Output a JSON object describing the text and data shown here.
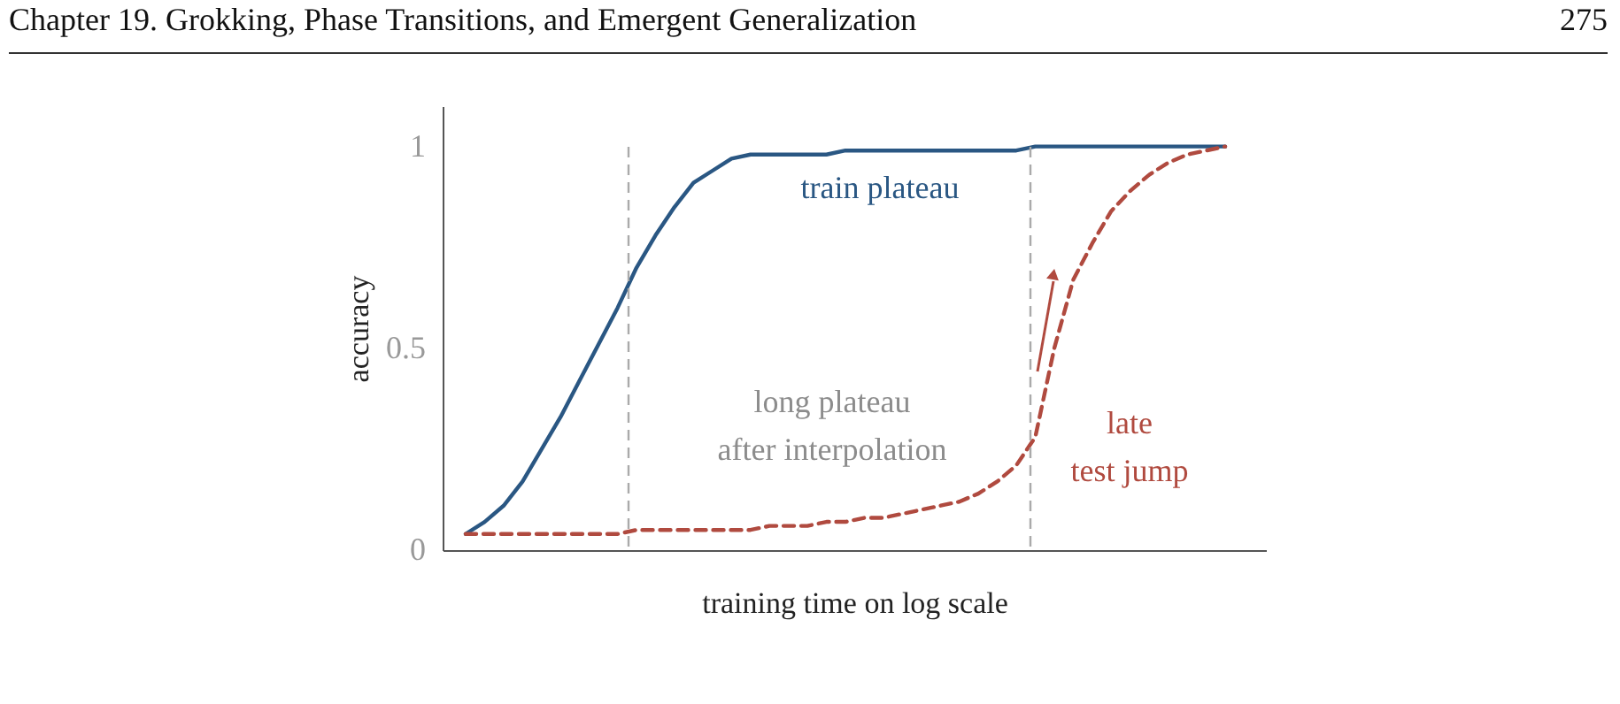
{
  "chart_data": {
    "type": "line",
    "annotations": [
      "Chapter 19.  Grokking, Phase Transitions, and Emergent Generalization",
      "275",
      "long plateau\nafter interpolation"
    ],
    "xlabel": "training time on log scale",
    "ylabel": "accuracy",
    "categories": [
      null,
      null,
      null,
      null,
      null,
      null,
      null,
      null,
      null,
      null,
      null,
      null,
      null,
      null,
      null,
      null,
      null,
      null,
      null,
      null,
      null,
      null,
      null,
      null,
      null,
      null,
      null,
      null,
      null,
      null,
      null,
      null,
      null,
      null,
      null,
      null,
      null,
      null,
      null,
      null,
      null
    ],
    "ylim": [
      0,
      1.1
    ],
    "yticks": [
      0,
      0.5,
      1
    ],
    "tick_labels": "y",
    "grid": false,
    "legend": false,
    "series": [
      {
        "name": "train plateau",
        "color": "#2a5783",
        "line_style": "solid",
        "values": [
          0.04,
          0.07,
          0.11,
          0.17,
          0.25,
          0.33,
          0.42,
          0.51,
          0.6,
          0.7,
          0.78,
          0.85,
          0.91,
          0.94,
          0.97,
          0.98,
          0.98,
          0.98,
          0.98,
          0.98,
          0.99,
          0.99,
          0.99,
          0.99,
          0.99,
          0.99,
          0.99,
          0.99,
          0.99,
          0.99,
          1.0,
          1.0,
          1.0,
          1.0,
          1.0,
          1.0,
          1.0,
          1.0,
          1.0,
          1.0,
          1.0
        ]
      },
      {
        "name": "late\ntest jump",
        "color": "#b04a3f",
        "line_style": "dashed",
        "values": [
          0.04,
          0.04,
          0.04,
          0.04,
          0.04,
          0.04,
          0.04,
          0.04,
          0.04,
          0.05,
          0.05,
          0.05,
          0.05,
          0.05,
          0.05,
          0.05,
          0.06,
          0.06,
          0.06,
          0.07,
          0.07,
          0.08,
          0.08,
          0.09,
          0.1,
          0.11,
          0.12,
          0.14,
          0.17,
          0.21,
          0.28,
          0.5,
          0.67,
          0.76,
          0.84,
          0.89,
          0.93,
          0.96,
          0.98,
          0.99,
          1.0
        ]
      }
    ]
  }
}
